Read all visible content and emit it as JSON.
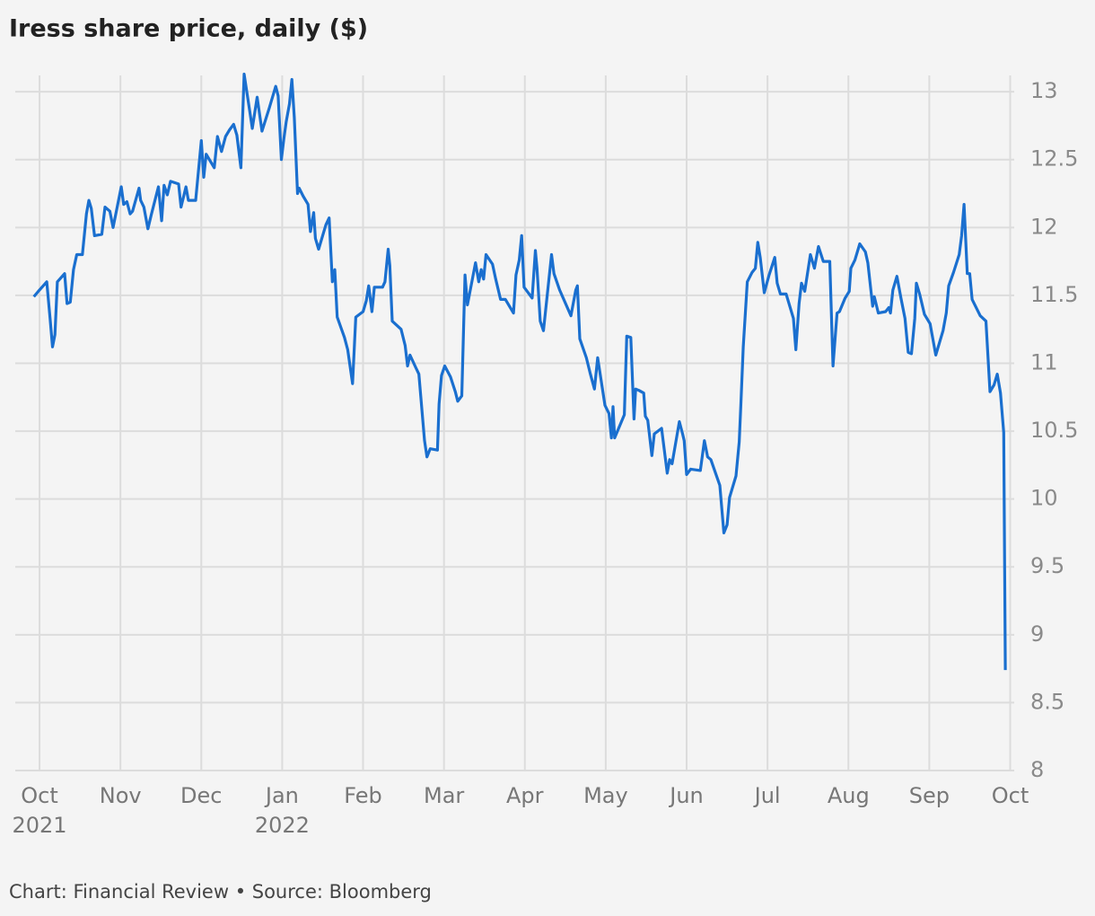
{
  "chart_data": {
    "type": "line",
    "title": "Iress share price, daily ($)",
    "source": "Chart: Financial Review • Source: Bloomberg",
    "grid": true,
    "xlim": [
      -0.3,
      12.05
    ],
    "xticks": [
      {
        "value": 0,
        "label": "Oct"
      },
      {
        "value": 1,
        "label": "Nov"
      },
      {
        "value": 2,
        "label": "Dec"
      },
      {
        "value": 3,
        "label": "Jan"
      },
      {
        "value": 4,
        "label": "Feb"
      },
      {
        "value": 5,
        "label": "Mar"
      },
      {
        "value": 6,
        "label": "Apr"
      },
      {
        "value": 7,
        "label": "May"
      },
      {
        "value": 8,
        "label": "Jun"
      },
      {
        "value": 9,
        "label": "Jul"
      },
      {
        "value": 10,
        "label": "Aug"
      },
      {
        "value": 11,
        "label": "Sep"
      },
      {
        "value": 12,
        "label": "Oct"
      }
    ],
    "xtick_years": [
      {
        "value": 0,
        "label": "2021"
      },
      {
        "value": 3,
        "label": "2022"
      }
    ],
    "ylim": [
      8,
      13.12
    ],
    "yticks": [
      8,
      8.5,
      9,
      9.5,
      10,
      10.5,
      11,
      11.5,
      12,
      12.5,
      13
    ],
    "series": [
      {
        "name": "Iress",
        "color": "#1a6fcf",
        "x": [
          -0.07,
          0,
          0.09,
          0.13,
          0.16,
          0.19,
          0.22,
          0.31,
          0.34,
          0.38,
          0.42,
          0.46,
          0.53,
          0.58,
          0.61,
          0.64,
          0.68,
          0.77,
          0.81,
          0.87,
          0.91,
          1.01,
          1.04,
          1.08,
          1.12,
          1.15,
          1.23,
          1.25,
          1.29,
          1.34,
          1.38,
          1.47,
          1.51,
          1.54,
          1.58,
          1.62,
          1.72,
          1.75,
          1.81,
          1.84,
          1.93,
          2.0,
          2.03,
          2.06,
          2.14,
          2.16,
          2.2,
          2.25,
          2.3,
          2.35,
          2.4,
          2.44,
          2.49,
          2.53,
          2.6,
          2.63,
          2.69,
          2.75,
          2.84,
          2.92,
          2.95,
          2.99,
          3.02,
          3.05,
          3.09,
          3.12,
          3.15,
          3.19,
          3.21,
          3.26,
          3.32,
          3.35,
          3.39,
          3.41,
          3.45,
          3.54,
          3.58,
          3.62,
          3.65,
          3.68,
          3.77,
          3.81,
          3.87,
          3.91,
          4.0,
          4.04,
          4.07,
          4.11,
          4.14,
          4.24,
          4.27,
          4.31,
          4.33,
          4.36,
          4.47,
          4.52,
          4.55,
          4.58,
          4.65,
          4.69,
          4.76,
          4.79,
          4.83,
          4.92,
          4.94,
          4.97,
          5.01,
          5.08,
          5.14,
          5.17,
          5.22,
          5.26,
          5.29,
          5.39,
          5.43,
          5.46,
          5.49,
          5.52,
          5.6,
          5.64,
          5.7,
          5.76,
          5.86,
          5.89,
          5.93,
          5.96,
          5.99,
          6.09,
          6.13,
          6.15,
          6.19,
          6.23,
          6.33,
          6.36,
          6.43,
          6.57,
          6.63,
          6.65,
          6.68,
          6.76,
          6.81,
          6.86,
          6.9,
          6.99,
          7.04,
          7.07,
          7.09,
          7.11,
          7.23,
          7.26,
          7.31,
          7.35,
          7.37,
          7.41,
          7.47,
          7.49,
          7.52,
          7.57,
          7.6,
          7.69,
          7.76,
          7.79,
          7.82,
          7.91,
          7.95,
          7.97,
          8.0,
          8.05,
          8.17,
          8.22,
          8.26,
          8.3,
          8.41,
          8.46,
          8.5,
          8.53,
          8.61,
          8.65,
          8.67,
          8.7,
          8.75,
          8.81,
          8.85,
          8.88,
          8.91,
          8.96,
          9.02,
          9.09,
          9.12,
          9.16,
          9.23,
          9.32,
          9.35,
          9.39,
          9.42,
          9.46,
          9.53,
          9.58,
          9.63,
          9.69,
          9.77,
          9.81,
          9.86,
          9.89,
          9.96,
          10.01,
          10.03,
          10.08,
          10.14,
          10.21,
          10.24,
          10.3,
          10.32,
          10.37,
          10.46,
          10.5,
          10.52,
          10.55,
          10.6,
          10.65,
          10.7,
          10.74,
          10.78,
          10.82,
          10.84,
          10.88,
          10.94,
          11.01,
          11.08,
          11.17,
          11.21,
          11.24,
          11.3,
          11.37,
          11.4,
          11.43,
          11.47,
          11.5,
          11.53,
          11.63,
          11.7,
          11.75,
          11.8,
          11.84,
          11.88,
          11.92,
          11.94
        ],
        "values": [
          11.49,
          11.54,
          11.6,
          11.33,
          11.12,
          11.21,
          11.6,
          11.66,
          11.44,
          11.45,
          11.69,
          11.8,
          11.8,
          12.1,
          12.2,
          12.14,
          11.94,
          11.95,
          12.15,
          12.12,
          12.0,
          12.3,
          12.17,
          12.19,
          12.1,
          12.12,
          12.29,
          12.2,
          12.15,
          11.99,
          12.09,
          12.3,
          12.05,
          12.31,
          12.24,
          12.34,
          12.32,
          12.15,
          12.3,
          12.2,
          12.2,
          12.64,
          12.37,
          12.54,
          12.46,
          12.44,
          12.67,
          12.56,
          12.67,
          12.72,
          12.76,
          12.68,
          12.44,
          13.13,
          12.85,
          12.73,
          12.96,
          12.71,
          12.88,
          13.04,
          12.97,
          12.5,
          12.65,
          12.78,
          12.91,
          13.09,
          12.81,
          12.25,
          12.29,
          12.23,
          12.17,
          11.97,
          12.11,
          11.92,
          11.84,
          12.02,
          12.07,
          11.6,
          11.69,
          11.34,
          11.19,
          11.1,
          10.85,
          11.34,
          11.38,
          11.46,
          11.57,
          11.38,
          11.56,
          11.56,
          11.6,
          11.84,
          11.72,
          11.31,
          11.25,
          11.13,
          10.98,
          11.06,
          10.97,
          10.92,
          10.43,
          10.31,
          10.37,
          10.36,
          10.7,
          10.91,
          10.98,
          10.9,
          10.79,
          10.72,
          10.76,
          11.65,
          11.43,
          11.74,
          11.6,
          11.69,
          11.62,
          11.8,
          11.73,
          11.62,
          11.47,
          11.47,
          11.37,
          11.65,
          11.76,
          11.94,
          11.56,
          11.48,
          11.83,
          11.7,
          11.31,
          11.24,
          11.8,
          11.66,
          11.54,
          11.35,
          11.54,
          11.57,
          11.18,
          11.04,
          10.92,
          10.81,
          11.04,
          10.69,
          10.63,
          10.45,
          10.68,
          10.45,
          10.62,
          11.2,
          11.19,
          10.59,
          10.81,
          10.8,
          10.78,
          10.61,
          10.58,
          10.32,
          10.48,
          10.52,
          10.19,
          10.29,
          10.26,
          10.57,
          10.48,
          10.43,
          10.18,
          10.22,
          10.21,
          10.43,
          10.31,
          10.29,
          10.1,
          9.75,
          9.81,
          10.01,
          10.17,
          10.42,
          10.69,
          11.12,
          11.6,
          11.67,
          11.7,
          11.89,
          11.78,
          11.52,
          11.65,
          11.78,
          11.59,
          11.51,
          11.51,
          11.33,
          11.1,
          11.44,
          11.59,
          11.53,
          11.8,
          11.7,
          11.86,
          11.75,
          11.75,
          10.98,
          11.37,
          11.38,
          11.48,
          11.53,
          11.7,
          11.76,
          11.88,
          11.82,
          11.74,
          11.42,
          11.49,
          11.37,
          11.38,
          11.41,
          11.37,
          11.54,
          11.64,
          11.48,
          11.33,
          11.08,
          11.07,
          11.33,
          11.59,
          11.51,
          11.36,
          11.29,
          11.06,
          11.24,
          11.37,
          11.57,
          11.67,
          11.8,
          11.94,
          12.17,
          11.66,
          11.66,
          11.47,
          11.35,
          11.31,
          10.79,
          10.84,
          10.92,
          10.78,
          10.49,
          8.74
        ]
      }
    ]
  }
}
